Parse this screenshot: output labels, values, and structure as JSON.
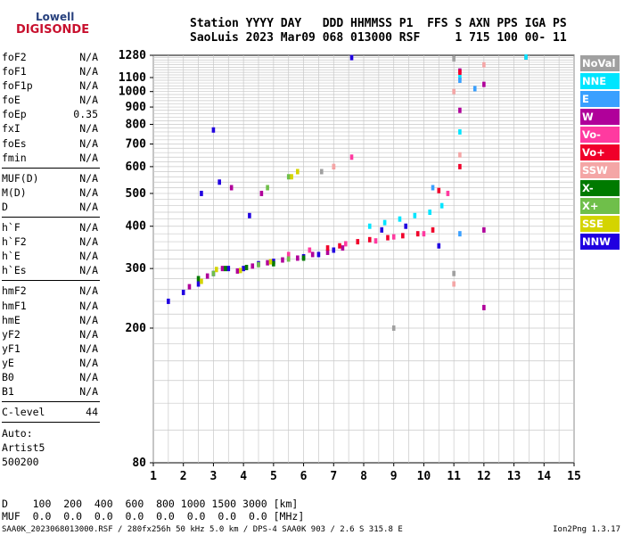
{
  "logo": {
    "line1": "Lowell",
    "line2": "DIGISONDE"
  },
  "header": {
    "row1": "Station YYYY DAY   DDD HHMMSS P1  FFS S AXN PPS IGA PS",
    "row2": "SaoLuis 2023 Mar09 068 013000 RSF     1 715 100 00- 11"
  },
  "params": [
    {
      "k": "foF2",
      "v": "N/A"
    },
    {
      "k": "foF1",
      "v": "N/A"
    },
    {
      "k": "foF1p",
      "v": "N/A"
    },
    {
      "k": "foE",
      "v": "N/A"
    },
    {
      "k": "foEp",
      "v": "0.35"
    },
    {
      "k": "fxI",
      "v": "N/A"
    },
    {
      "k": "foEs",
      "v": "N/A"
    },
    {
      "k": "fmin",
      "v": "N/A"
    },
    {
      "k": "MUF(D)",
      "v": "N/A"
    },
    {
      "k": "M(D)",
      "v": "N/A"
    },
    {
      "k": "D",
      "v": "N/A"
    },
    {
      "k": "h`F",
      "v": "N/A"
    },
    {
      "k": "h`F2",
      "v": "N/A"
    },
    {
      "k": "h`E",
      "v": "N/A"
    },
    {
      "k": "h`Es",
      "v": "N/A"
    },
    {
      "k": "hmF2",
      "v": "N/A"
    },
    {
      "k": "hmF1",
      "v": "N/A"
    },
    {
      "k": "hmE",
      "v": "N/A"
    },
    {
      "k": "yF2",
      "v": "N/A"
    },
    {
      "k": "yF1",
      "v": "N/A"
    },
    {
      "k": "yE",
      "v": "N/A"
    },
    {
      "k": "B0",
      "v": "N/A"
    },
    {
      "k": "B1",
      "v": "N/A"
    },
    {
      "k": "C-level",
      "v": "44"
    }
  ],
  "auto": {
    "line1": "Auto:",
    "line2": "Artist5",
    "line3": "500200"
  },
  "legend": [
    {
      "label": "NoVal",
      "color": "#a0a0a0"
    },
    {
      "label": "NNE",
      "color": "#00e5ff"
    },
    {
      "label": "E",
      "color": "#3aa0ff"
    },
    {
      "label": "W",
      "color": "#b0009a"
    },
    {
      "label": "Vo-",
      "color": "#ff3aa0"
    },
    {
      "label": "Vo+",
      "color": "#f0002a"
    },
    {
      "label": "SSW",
      "color": "#f4a6a6"
    },
    {
      "label": "X-",
      "color": "#007a00"
    },
    {
      "label": "X+",
      "color": "#6fbf4a"
    },
    {
      "label": "SSE",
      "color": "#d4d400"
    },
    {
      "label": "NNW",
      "color": "#2000e0"
    }
  ],
  "bottom": {
    "d_row": "D    100  200  400  600  800 1000 1500 3000 [km]",
    "muf_row": "MUF  0.0  0.0  0.0  0.0  0.0  0.0  0.0  0.0 [MHz]"
  },
  "footer": {
    "left": "SAA0K_2023068013000.RSF / 280fx256h 50 kHz 5.0 km / DPS-4 SAA0K 903 / 2.6 S 315.8 E",
    "right": "Ion2Png 1.3.17"
  },
  "chart_data": {
    "type": "scatter",
    "title": "",
    "xlabel": "",
    "ylabel": "",
    "xlim": [
      1,
      15
    ],
    "ylim": [
      80,
      1280
    ],
    "x_ticks": [
      1,
      2,
      3,
      4,
      5,
      6,
      7,
      8,
      9,
      10,
      11,
      12,
      13,
      14,
      15
    ],
    "y_ticks": [
      80,
      200,
      300,
      400,
      500,
      600,
      700,
      800,
      900,
      1000,
      1100,
      1280
    ],
    "y_scale": "log",
    "grid": true,
    "series": [
      {
        "name": "NNW",
        "color": "#2000e0",
        "points": [
          [
            1.5,
            240
          ],
          [
            2.0,
            255
          ],
          [
            2.5,
            270
          ],
          [
            3.0,
            290
          ],
          [
            3.5,
            300
          ],
          [
            4.0,
            300
          ],
          [
            4.5,
            310
          ],
          [
            5.0,
            315
          ],
          [
            5.5,
            320
          ],
          [
            6.0,
            325
          ],
          [
            6.5,
            330
          ],
          [
            7.0,
            340
          ],
          [
            3.2,
            540
          ],
          [
            4.2,
            430
          ],
          [
            8.6,
            390
          ],
          [
            9.4,
            400
          ],
          [
            10.5,
            350
          ],
          [
            3.0,
            770
          ],
          [
            2.6,
            500
          ],
          [
            7.6,
            1260
          ]
        ]
      },
      {
        "name": "W",
        "color": "#b0009a",
        "points": [
          [
            2.2,
            265
          ],
          [
            2.8,
            285
          ],
          [
            3.3,
            300
          ],
          [
            3.8,
            295
          ],
          [
            4.3,
            305
          ],
          [
            4.8,
            312
          ],
          [
            5.3,
            318
          ],
          [
            5.8,
            322
          ],
          [
            6.3,
            330
          ],
          [
            6.8,
            335
          ],
          [
            7.3,
            345
          ],
          [
            3.6,
            520
          ],
          [
            4.6,
            500
          ],
          [
            11.2,
            1150
          ],
          [
            12.0,
            1050
          ],
          [
            12.0,
            230
          ],
          [
            12.0,
            390
          ],
          [
            11.2,
            880
          ]
        ]
      },
      {
        "name": "Vo+",
        "color": "#f0002a",
        "points": [
          [
            6.8,
            345
          ],
          [
            7.2,
            350
          ],
          [
            7.8,
            360
          ],
          [
            8.2,
            365
          ],
          [
            8.8,
            370
          ],
          [
            9.3,
            375
          ],
          [
            9.8,
            380
          ],
          [
            10.3,
            390
          ],
          [
            7.0,
            600
          ],
          [
            10.5,
            510
          ],
          [
            11.2,
            600
          ],
          [
            13.4,
            1265
          ],
          [
            11.2,
            1140
          ]
        ]
      },
      {
        "name": "Vo-",
        "color": "#ff3aa0",
        "points": [
          [
            5.5,
            330
          ],
          [
            6.2,
            340
          ],
          [
            7.4,
            355
          ],
          [
            8.4,
            362
          ],
          [
            9.0,
            372
          ],
          [
            10.0,
            380
          ],
          [
            7.6,
            640
          ],
          [
            10.8,
            500
          ]
        ]
      },
      {
        "name": "NNE",
        "color": "#00e5ff",
        "points": [
          [
            8.2,
            400
          ],
          [
            8.7,
            410
          ],
          [
            9.2,
            420
          ],
          [
            9.7,
            430
          ],
          [
            10.2,
            440
          ],
          [
            10.6,
            460
          ],
          [
            11.2,
            1100
          ],
          [
            11.2,
            760
          ],
          [
            13.4,
            1265
          ]
        ]
      },
      {
        "name": "E",
        "color": "#3aa0ff",
        "points": [
          [
            11.2,
            1080
          ],
          [
            11.2,
            380
          ],
          [
            11.7,
            1020
          ],
          [
            10.3,
            520
          ]
        ]
      },
      {
        "name": "X-",
        "color": "#007a00",
        "points": [
          [
            2.5,
            280
          ],
          [
            3.4,
            300
          ],
          [
            4.1,
            302
          ],
          [
            5.0,
            310
          ],
          [
            6.0,
            322
          ]
        ]
      },
      {
        "name": "X+",
        "color": "#6fbf4a",
        "points": [
          [
            3.0,
            290
          ],
          [
            4.5,
            308
          ],
          [
            5.5,
            320
          ],
          [
            4.8,
            520
          ],
          [
            5.5,
            560
          ]
        ]
      },
      {
        "name": "SSE",
        "color": "#d4d400",
        "points": [
          [
            2.6,
            275
          ],
          [
            3.1,
            298
          ],
          [
            3.9,
            296
          ],
          [
            4.9,
            314
          ],
          [
            5.6,
            560
          ],
          [
            5.8,
            580
          ]
        ]
      },
      {
        "name": "SSW",
        "color": "#f4a6a6",
        "points": [
          [
            11.0,
            270
          ],
          [
            11.0,
            1000
          ],
          [
            11.2,
            650
          ],
          [
            7.0,
            600
          ],
          [
            12.0,
            1200
          ]
        ]
      },
      {
        "name": "NoVal",
        "color": "#a0a0a0",
        "points": [
          [
            11.0,
            290
          ],
          [
            11.0,
            1250
          ],
          [
            6.6,
            580
          ],
          [
            9.0,
            200
          ]
        ]
      }
    ]
  }
}
